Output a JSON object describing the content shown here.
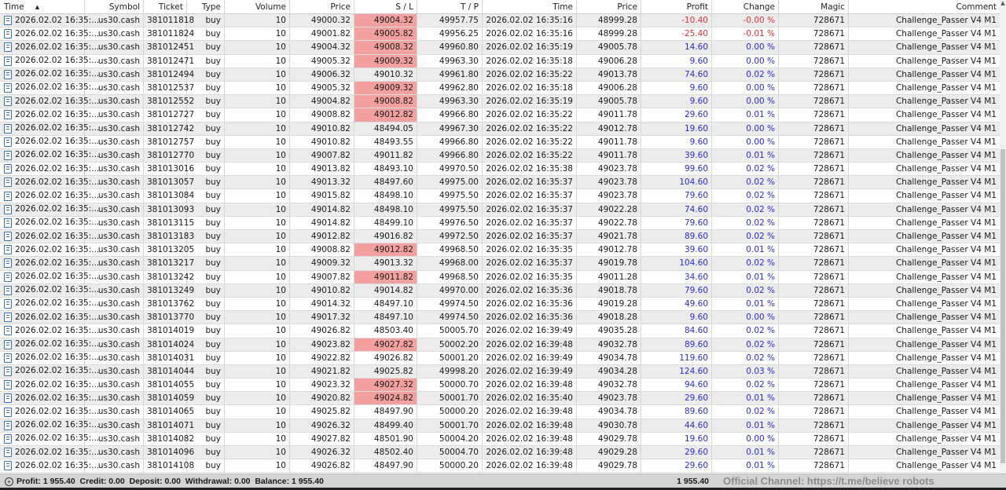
{
  "columns": [
    "Time",
    "Symbol",
    "Ticket",
    "Type",
    "Volume",
    "Price",
    "S / L",
    "T / P",
    "Time",
    "Price",
    "Profit",
    "Change",
    "Magic",
    "Comment"
  ],
  "sort_column": "Time",
  "sort_direction": "ascending",
  "colors": {
    "sl_highlight": "#f4a0a0",
    "profit_positive": "#2b2bd0",
    "profit_negative": "#e0303a",
    "alt_row": "#ececec"
  },
  "rows": [
    {
      "c": [
        "2026.02.02 16:35:...",
        "us30.cash",
        "381011818",
        "buy",
        "10",
        "49000.32",
        "49004.32",
        "49957.75",
        "2026.02.02 16:35:16",
        "48999.28",
        "-10.40",
        "-0.00 %",
        "728671",
        "Challenge_Passer V4 M1"
      ],
      "hl": true
    },
    {
      "c": [
        "2026.02.02 16:35:...",
        "us30.cash",
        "381011824",
        "buy",
        "10",
        "49001.82",
        "49005.82",
        "49956.25",
        "2026.02.02 16:35:16",
        "48999.28",
        "-25.40",
        "-0.01 %",
        "728671",
        "Challenge_Passer V4 M1"
      ],
      "hl": true
    },
    {
      "c": [
        "2026.02.02 16:35:...",
        "us30.cash",
        "381012451",
        "buy",
        "10",
        "49004.32",
        "49008.32",
        "49960.80",
        "2026.02.02 16:35:19",
        "49005.78",
        "14.60",
        "0.00 %",
        "728671",
        "Challenge_Passer V4 M1"
      ],
      "hl": true
    },
    {
      "c": [
        "2026.02.02 16:35:...",
        "us30.cash",
        "381012471",
        "buy",
        "10",
        "49005.32",
        "49009.32",
        "49963.30",
        "2026.02.02 16:35:18",
        "49006.28",
        "9.60",
        "0.00 %",
        "728671",
        "Challenge_Passer V4 M1"
      ],
      "hl": true
    },
    {
      "c": [
        "2026.02.02 16:35:...",
        "us30.cash",
        "381012494",
        "buy",
        "10",
        "49006.32",
        "49010.32",
        "49961.80",
        "2026.02.02 16:35:22",
        "49013.78",
        "74.60",
        "0.02 %",
        "728671",
        "Challenge_Passer V4 M1"
      ],
      "hl": false
    },
    {
      "c": [
        "2026.02.02 16:35:...",
        "us30.cash",
        "381012537",
        "buy",
        "10",
        "49005.32",
        "49009.32",
        "49962.80",
        "2026.02.02 16:35:18",
        "49006.28",
        "9.60",
        "0.00 %",
        "728671",
        "Challenge_Passer V4 M1"
      ],
      "hl": true
    },
    {
      "c": [
        "2026.02.02 16:35:...",
        "us30.cash",
        "381012552",
        "buy",
        "10",
        "49004.82",
        "49008.82",
        "49963.30",
        "2026.02.02 16:35:19",
        "49005.78",
        "9.60",
        "0.00 %",
        "728671",
        "Challenge_Passer V4 M1"
      ],
      "hl": true
    },
    {
      "c": [
        "2026.02.02 16:35:...",
        "us30.cash",
        "381012727",
        "buy",
        "10",
        "49008.82",
        "49012.82",
        "49966.80",
        "2026.02.02 16:35:22",
        "49011.78",
        "29.60",
        "0.01 %",
        "728671",
        "Challenge_Passer V4 M1"
      ],
      "hl": true
    },
    {
      "c": [
        "2026.02.02 16:35:...",
        "us30.cash",
        "381012742",
        "buy",
        "10",
        "49010.82",
        "48494.05",
        "49967.30",
        "2026.02.02 16:35:22",
        "49012.78",
        "19.60",
        "0.00 %",
        "728671",
        "Challenge_Passer V4 M1"
      ],
      "hl": false
    },
    {
      "c": [
        "2026.02.02 16:35:...",
        "us30.cash",
        "381012757",
        "buy",
        "10",
        "49010.82",
        "48493.55",
        "49966.80",
        "2026.02.02 16:35:22",
        "49011.78",
        "9.60",
        "0.00 %",
        "728671",
        "Challenge_Passer V4 M1"
      ],
      "hl": false
    },
    {
      "c": [
        "2026.02.02 16:35:...",
        "us30.cash",
        "381012770",
        "buy",
        "10",
        "49007.82",
        "49011.82",
        "49966.80",
        "2026.02.02 16:35:22",
        "49011.78",
        "39.60",
        "0.01 %",
        "728671",
        "Challenge_Passer V4 M1"
      ],
      "hl": false
    },
    {
      "c": [
        "2026.02.02 16:35:...",
        "us30.cash",
        "381013016",
        "buy",
        "10",
        "49013.82",
        "48493.10",
        "49970.50",
        "2026.02.02 16:35:38",
        "49023.78",
        "99.60",
        "0.02 %",
        "728671",
        "Challenge_Passer V4 M1"
      ],
      "hl": false
    },
    {
      "c": [
        "2026.02.02 16:35:...",
        "us30.cash",
        "381013057",
        "buy",
        "10",
        "49013.32",
        "48497.60",
        "49975.00",
        "2026.02.02 16:35:37",
        "49023.78",
        "104.60",
        "0.02 %",
        "728671",
        "Challenge_Passer V4 M1"
      ],
      "hl": false
    },
    {
      "c": [
        "2026.02.02 16:35:...",
        "us30.cash",
        "381013084",
        "buy",
        "10",
        "49015.82",
        "48498.10",
        "49975.50",
        "2026.02.02 16:35:37",
        "49023.78",
        "79.60",
        "0.02 %",
        "728671",
        "Challenge_Passer V4 M1"
      ],
      "hl": false
    },
    {
      "c": [
        "2026.02.02 16:35:...",
        "us30.cash",
        "381013093",
        "buy",
        "10",
        "49014.82",
        "48498.10",
        "49975.50",
        "2026.02.02 16:35:37",
        "49022.28",
        "74.60",
        "0.02 %",
        "728671",
        "Challenge_Passer V4 M1"
      ],
      "hl": false
    },
    {
      "c": [
        "2026.02.02 16:35:...",
        "us30.cash",
        "381013115",
        "buy",
        "10",
        "49014.82",
        "48499.10",
        "49976.50",
        "2026.02.02 16:35:37",
        "49022.78",
        "79.60",
        "0.02 %",
        "728671",
        "Challenge_Passer V4 M1"
      ],
      "hl": false
    },
    {
      "c": [
        "2026.02.02 16:35:...",
        "us30.cash",
        "381013183",
        "buy",
        "10",
        "49012.82",
        "49016.82",
        "49972.50",
        "2026.02.02 16:35:37",
        "49021.78",
        "89.60",
        "0.02 %",
        "728671",
        "Challenge_Passer V4 M1"
      ],
      "hl": false
    },
    {
      "c": [
        "2026.02.02 16:35:...",
        "us30.cash",
        "381013205",
        "buy",
        "10",
        "49008.82",
        "49012.82",
        "49968.50",
        "2026.02.02 16:35:35",
        "49012.78",
        "39.60",
        "0.01 %",
        "728671",
        "Challenge_Passer V4 M1"
      ],
      "hl": true
    },
    {
      "c": [
        "2026.02.02 16:35:...",
        "us30.cash",
        "381013217",
        "buy",
        "10",
        "49009.32",
        "49013.32",
        "49968.00",
        "2026.02.02 16:35:37",
        "49019.78",
        "104.60",
        "0.02 %",
        "728671",
        "Challenge_Passer V4 M1"
      ],
      "hl": false
    },
    {
      "c": [
        "2026.02.02 16:35:...",
        "us30.cash",
        "381013242",
        "buy",
        "10",
        "49007.82",
        "49011.82",
        "49968.50",
        "2026.02.02 16:35:35",
        "49011.28",
        "34.60",
        "0.01 %",
        "728671",
        "Challenge_Passer V4 M1"
      ],
      "hl": true
    },
    {
      "c": [
        "2026.02.02 16:35:...",
        "us30.cash",
        "381013249",
        "buy",
        "10",
        "49010.82",
        "49014.82",
        "49970.00",
        "2026.02.02 16:35:36",
        "49018.78",
        "79.60",
        "0.02 %",
        "728671",
        "Challenge_Passer V4 M1"
      ],
      "hl": false
    },
    {
      "c": [
        "2026.02.02 16:35:...",
        "us30.cash",
        "381013762",
        "buy",
        "10",
        "49014.32",
        "48497.10",
        "49974.50",
        "2026.02.02 16:35:36",
        "49019.28",
        "49.60",
        "0.01 %",
        "728671",
        "Challenge_Passer V4 M1"
      ],
      "hl": false
    },
    {
      "c": [
        "2026.02.02 16:35:...",
        "us30.cash",
        "381013770",
        "buy",
        "10",
        "49017.32",
        "48497.10",
        "49974.50",
        "2026.02.02 16:35:36",
        "49018.28",
        "9.60",
        "0.00 %",
        "728671",
        "Challenge_Passer V4 M1"
      ],
      "hl": false
    },
    {
      "c": [
        "2026.02.02 16:35:...",
        "us30.cash",
        "381014019",
        "buy",
        "10",
        "49026.82",
        "48503.40",
        "50005.70",
        "2026.02.02 16:39:49",
        "49035.28",
        "84.60",
        "0.02 %",
        "728671",
        "Challenge_Passer V4 M1"
      ],
      "hl": false
    },
    {
      "c": [
        "2026.02.02 16:35:...",
        "us30.cash",
        "381014024",
        "buy",
        "10",
        "49023.82",
        "49027.82",
        "50002.20",
        "2026.02.02 16:39:48",
        "49032.78",
        "89.60",
        "0.02 %",
        "728671",
        "Challenge_Passer V4 M1"
      ],
      "hl": true
    },
    {
      "c": [
        "2026.02.02 16:35:...",
        "us30.cash",
        "381014031",
        "buy",
        "10",
        "49022.82",
        "49026.82",
        "50001.20",
        "2026.02.02 16:39:49",
        "49034.78",
        "119.60",
        "0.02 %",
        "728671",
        "Challenge_Passer V4 M1"
      ],
      "hl": false
    },
    {
      "c": [
        "2026.02.02 16:35:...",
        "us30.cash",
        "381014044",
        "buy",
        "10",
        "49021.82",
        "49025.82",
        "49998.20",
        "2026.02.02 16:39:49",
        "49034.28",
        "124.60",
        "0.03 %",
        "728671",
        "Challenge_Passer V4 M1"
      ],
      "hl": false
    },
    {
      "c": [
        "2026.02.02 16:35:...",
        "us30.cash",
        "381014055",
        "buy",
        "10",
        "49023.32",
        "49027.32",
        "50000.70",
        "2026.02.02 16:39:48",
        "49032.78",
        "94.60",
        "0.02 %",
        "728671",
        "Challenge_Passer V4 M1"
      ],
      "hl": true
    },
    {
      "c": [
        "2026.02.02 16:35:...",
        "us30.cash",
        "381014059",
        "buy",
        "10",
        "49020.82",
        "49024.82",
        "50001.70",
        "2026.02.02 16:35:40",
        "49023.78",
        "29.60",
        "0.01 %",
        "728671",
        "Challenge_Passer V4 M1"
      ],
      "hl": true
    },
    {
      "c": [
        "2026.02.02 16:35:...",
        "us30.cash",
        "381014065",
        "buy",
        "10",
        "49025.82",
        "48497.90",
        "50000.20",
        "2026.02.02 16:39:48",
        "49034.78",
        "89.60",
        "0.02 %",
        "728671",
        "Challenge_Passer V4 M1"
      ],
      "hl": false
    },
    {
      "c": [
        "2026.02.02 16:35:...",
        "us30.cash",
        "381014071",
        "buy",
        "10",
        "49026.32",
        "48499.40",
        "50001.70",
        "2026.02.02 16:39:48",
        "49030.78",
        "44.60",
        "0.01 %",
        "728671",
        "Challenge_Passer V4 M1"
      ],
      "hl": false
    },
    {
      "c": [
        "2026.02.02 16:35:...",
        "us30.cash",
        "381014082",
        "buy",
        "10",
        "49027.82",
        "48501.90",
        "50004.20",
        "2026.02.02 16:39:48",
        "49029.78",
        "19.60",
        "0.00 %",
        "728671",
        "Challenge_Passer V4 M1"
      ],
      "hl": false
    },
    {
      "c": [
        "2026.02.02 16:35:...",
        "us30.cash",
        "381014096",
        "buy",
        "10",
        "49026.32",
        "48502.40",
        "50004.70",
        "2026.02.02 16:39:48",
        "49029.28",
        "29.60",
        "0.01 %",
        "728671",
        "Challenge_Passer V4 M1"
      ],
      "hl": false
    },
    {
      "c": [
        "2026.02.02 16:35:...",
        "us30.cash",
        "381014108",
        "buy",
        "10",
        "49026.82",
        "48497.90",
        "50000.20",
        "2026.02.02 16:39:48",
        "49029.78",
        "29.60",
        "0.01 %",
        "728671",
        "Challenge_Passer V4 M1"
      ],
      "hl": false
    }
  ],
  "footer": {
    "summary": "Profit: 1 955.40  Credit: 0.00  Deposit: 0.00  Withdrawal: 0.00  Balance: 1 955.40",
    "total_profit": "1 955.40"
  },
  "watermark": "Official Channel: https://t.me/believe robots"
}
